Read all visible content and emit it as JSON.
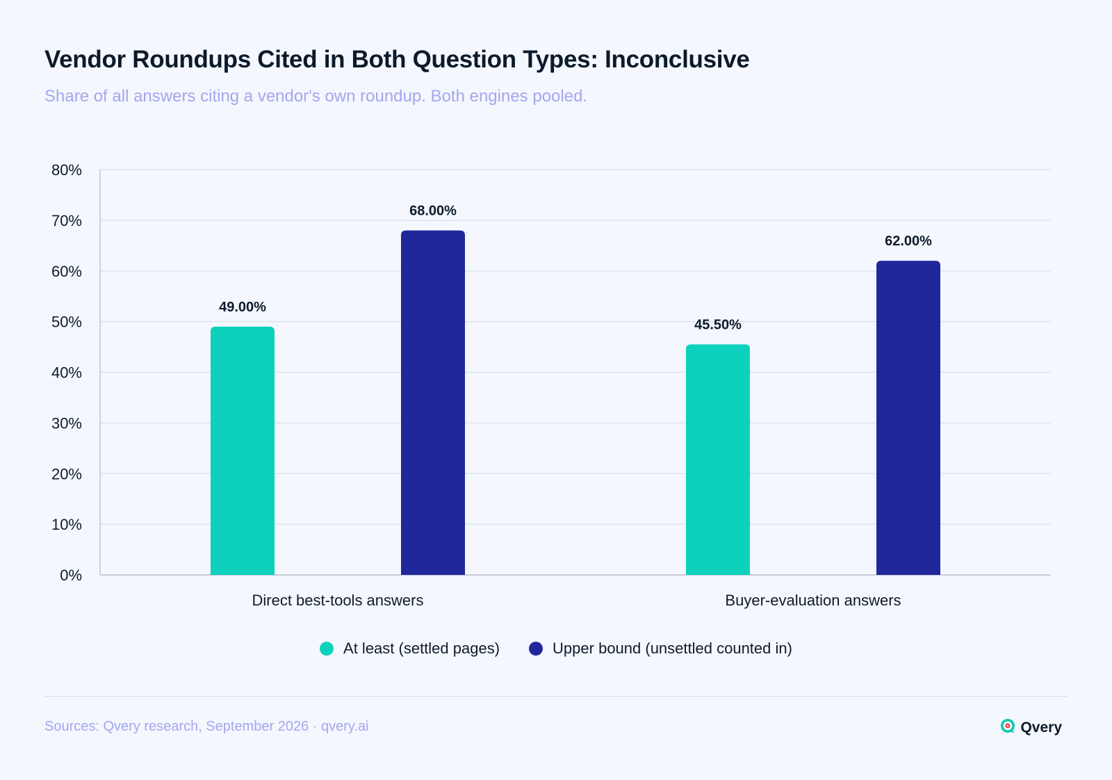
{
  "title": "Vendor Roundups Cited in Both Question Types: Inconclusive",
  "subtitle": "Share of all answers citing a vendor's own roundup. Both engines pooled.",
  "footer": {
    "source": "Sources: Qvery research, September 2026 · qvery.ai",
    "brand": "Qvery"
  },
  "colors": {
    "at_least": "#0dd1bc",
    "upper_bound": "#20279b",
    "grid": "#d9deec",
    "axis": "#b8bdcc",
    "brand_accent": "#17c9b1",
    "brand_mark": "#e8384f"
  },
  "chart_data": {
    "type": "bar",
    "categories": [
      "Direct best-tools answers",
      "Buyer-evaluation answers"
    ],
    "series": [
      {
        "name": "At least (settled pages)",
        "values": [
          49.0,
          45.5
        ],
        "labels": [
          "49.00%",
          "45.50%"
        ],
        "color": "#0dd1bc"
      },
      {
        "name": "Upper bound (unsettled counted in)",
        "values": [
          68.0,
          62.0
        ],
        "labels": [
          "68.00%",
          "62.00%"
        ],
        "color": "#20279b"
      }
    ],
    "ylim": [
      0,
      80
    ],
    "yticks": [
      0,
      10,
      20,
      30,
      40,
      50,
      60,
      70,
      80
    ],
    "ytick_labels": [
      "0%",
      "10%",
      "20%",
      "30%",
      "40%",
      "50%",
      "60%",
      "70%",
      "80%"
    ],
    "grid": true,
    "legend_position": "bottom-center"
  }
}
